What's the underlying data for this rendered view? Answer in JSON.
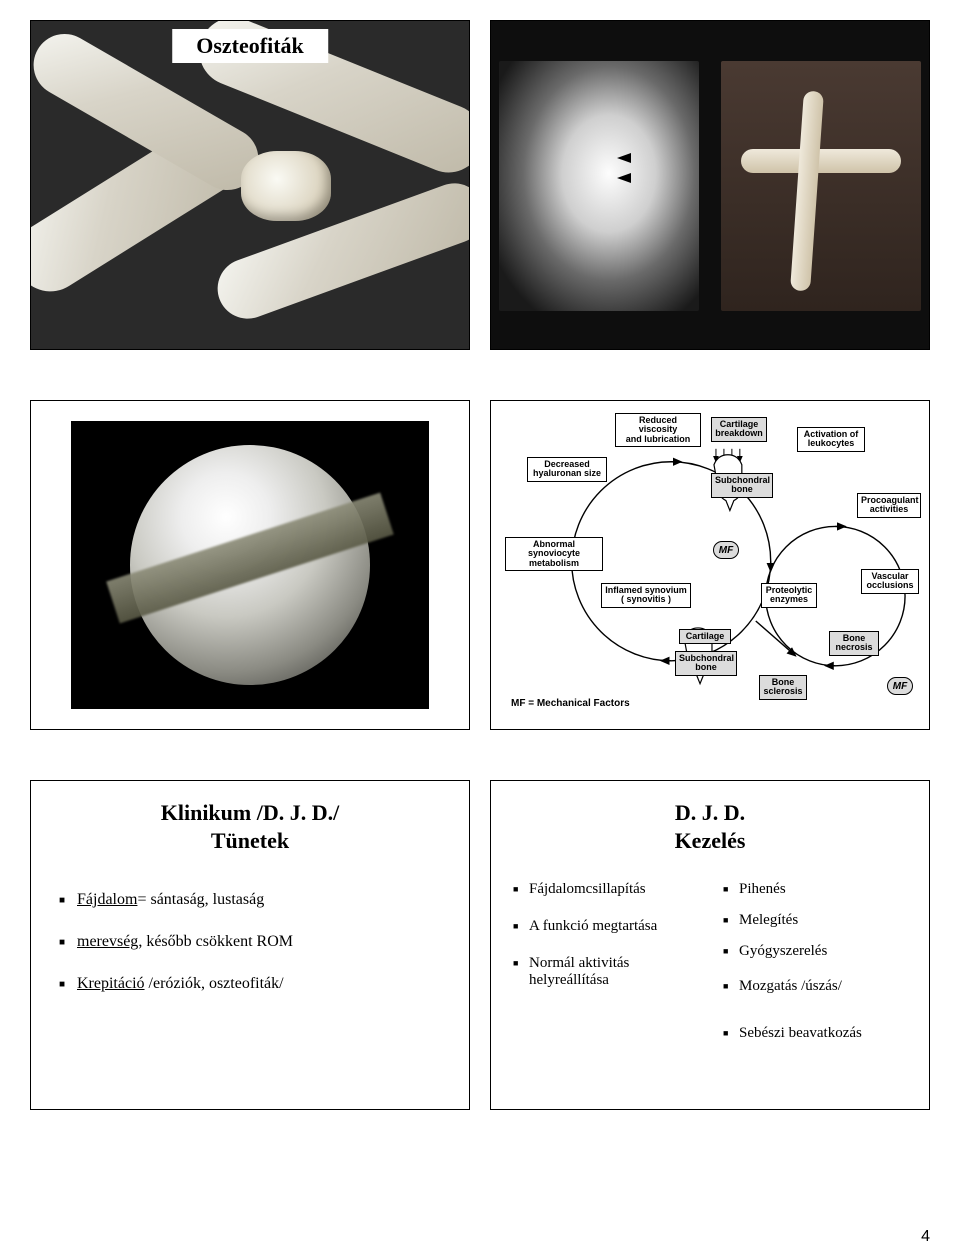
{
  "page": {
    "number": "4"
  },
  "slide1": {
    "title": "Oszteofiták",
    "bg_color": "#2a2a2a",
    "bone_color_stops": [
      "#f5f5f0",
      "#d8d4c8",
      "#bfb9a8"
    ]
  },
  "slide2": {
    "bg_color": "#0e0e0e",
    "left_image_desc": "radiograph-joint",
    "right_image_desc": "surgical-exposure"
  },
  "slide3": {
    "frame_color": "#000000",
    "scope_desc": "arthroscopic-cartilage"
  },
  "slide4": {
    "caption": "MF = Mechanical Factors",
    "mf_label": "MF",
    "boxes": {
      "reduced": "Reduced viscosity\nand lubrication",
      "breakdown": "Cartilage\nbreakdown",
      "activ": "Activation of\nleukocytes",
      "hyal": "Decreased\nhyaluronan size",
      "sub1": "Subchondral\nbone",
      "abn": "Abnormal synoviocyte\nmetabolism",
      "procoag": "Procoagulant\nactivities",
      "inflamed": "Inflamed synovium\n( synovitis )",
      "proteo": "Proteolytic\nenzymes",
      "vasc": "Vascular\nocclusions",
      "cart2": "Cartilage",
      "sub2": "Subchondral\nbone",
      "bnec": "Bone\nnecrosis",
      "bscl": "Bone\nsclerosis"
    },
    "font_size_pt": 7,
    "box_border_color": "#000000",
    "shade_color": "#dcdcdc",
    "arrow_color": "#000000"
  },
  "slide5": {
    "title": "Klinikum /D. J. D./\nTünetek",
    "bullets": [
      {
        "u": "Fájdalom",
        "rest": "= sántaság, lustaság"
      },
      {
        "u": "merevség",
        "rest": ", később csökkent ROM"
      },
      {
        "u": "Krepitáció",
        "rest": " /eróziók, oszteofiták/"
      }
    ],
    "title_fontsize": 22,
    "bullet_fontsize": 16
  },
  "slide6": {
    "title": "D. J. D.\nKezelés",
    "left": [
      "Fájdalomcsillapítás",
      "A funkció megtartása",
      "Normál aktivitás helyreállítása"
    ],
    "right": [
      "Pihenés",
      "Melegítés",
      "Gyógyszerelés",
      "Mozgatás /úszás/",
      "Sebészi beavatkozás"
    ],
    "title_fontsize": 22,
    "bullet_fontsize": 15
  }
}
